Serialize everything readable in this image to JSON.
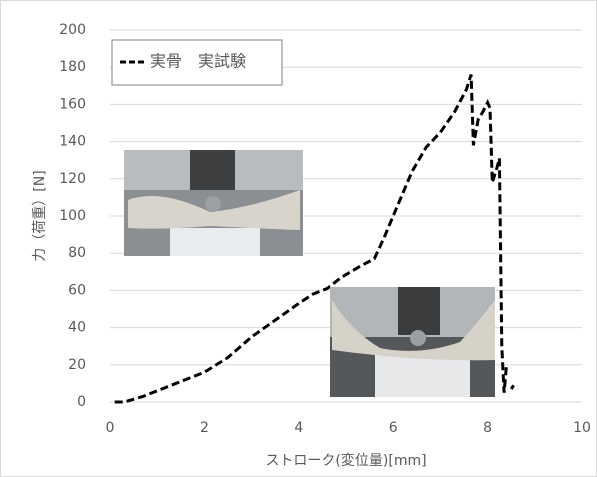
{
  "chart_data": {
    "type": "line",
    "xlabel": "ストローク(変位量)[mm]",
    "ylabel": "力（荷重）[N]",
    "x": [
      0.1,
      0.3,
      0.7,
      1.2,
      2.0,
      2.5,
      3.0,
      3.5,
      4.0,
      4.3,
      4.6,
      4.9,
      5.3,
      5.6,
      5.8,
      6.1,
      6.4,
      6.7,
      7.0,
      7.3,
      7.55,
      7.65,
      7.7,
      7.8,
      7.9,
      8.0,
      8.05,
      8.1,
      8.2,
      8.25,
      8.3,
      8.35,
      8.4,
      8.45,
      8.5,
      8.55
    ],
    "series": [
      {
        "name": "実骨　実試験",
        "color": "#000000",
        "values": [
          0,
          0,
          3,
          8,
          16,
          24,
          35,
          44,
          53,
          58,
          61,
          67,
          73,
          77,
          88,
          106,
          124,
          137,
          145,
          156,
          168,
          176,
          138,
          152,
          156,
          161,
          158,
          118,
          126,
          131,
          30,
          5,
          20,
          null,
          7,
          9
        ]
      }
    ],
    "xlim": [
      0,
      10
    ],
    "xticks": [
      0,
      2,
      4,
      6,
      8,
      10
    ],
    "ylim": [
      0,
      200
    ],
    "yticks": [
      0,
      20,
      40,
      60,
      80,
      100,
      120,
      140,
      160,
      180,
      200
    ],
    "grid": true,
    "legend": "upper left"
  }
}
